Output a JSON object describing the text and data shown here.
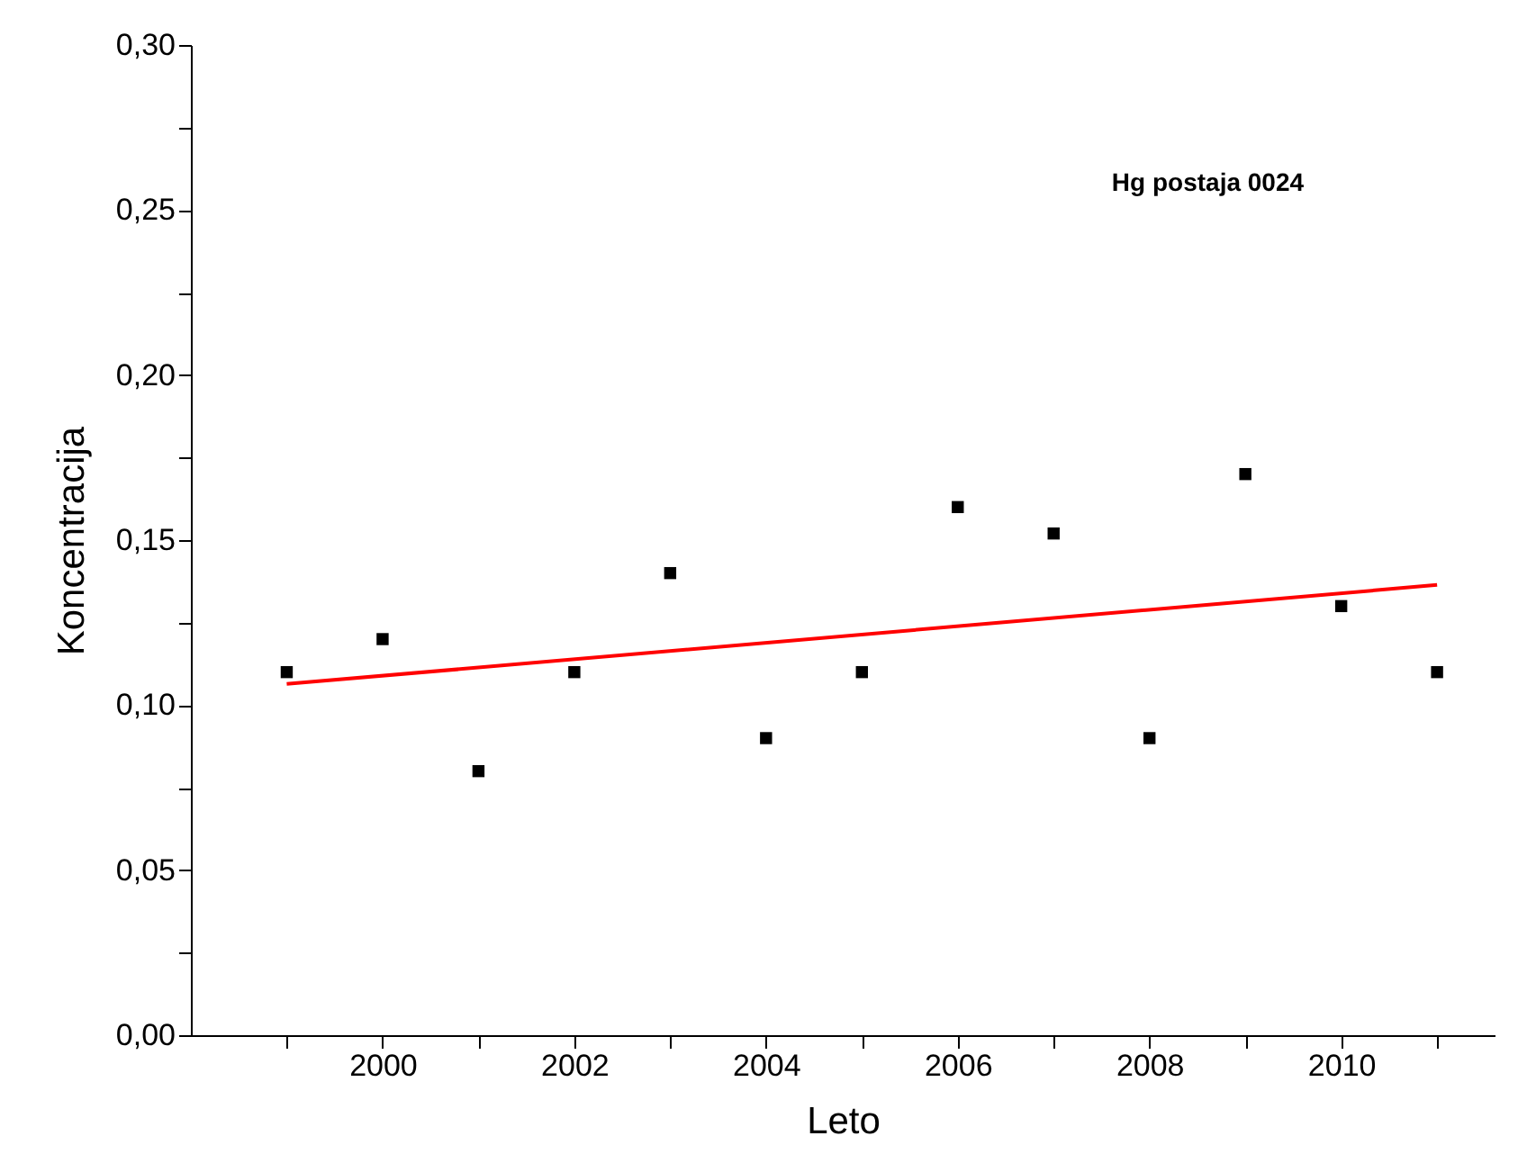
{
  "chart_data": {
    "type": "scatter",
    "xlabel": "Leto",
    "ylabel": "Koncentracija",
    "annotations": [
      "Hg postaja 0024"
    ],
    "x": [
      1999,
      2000,
      2001,
      2002,
      2003,
      2004,
      2005,
      2006,
      2007,
      2008,
      2009,
      2010,
      2011
    ],
    "series": [
      {
        "type": "scatter",
        "color": "#000000",
        "marker": "square",
        "values": [
          0.11,
          0.12,
          0.08,
          0.11,
          0.14,
          0.09,
          0.11,
          0.16,
          0.152,
          0.09,
          0.17,
          0.13,
          0.11
        ]
      },
      {
        "type": "line",
        "color": "#ff0000",
        "line_style": "solid",
        "marker": "none",
        "x": [
          1999,
          2011
        ],
        "values": [
          0.1064,
          0.1364
        ]
      }
    ],
    "xlim": [
      1998,
      2011.6
    ],
    "ylim": [
      0,
      0.3
    ],
    "xticks": [
      {
        "value": 1999,
        "label": null
      },
      2000,
      {
        "value": 2001,
        "label": null
      },
      2002,
      {
        "value": 2003,
        "label": null
      },
      2004,
      {
        "value": 2005,
        "label": null
      },
      2006,
      {
        "value": 2007,
        "label": null
      },
      2008,
      {
        "value": 2009,
        "label": null
      },
      2010,
      {
        "value": 2011,
        "label": null
      }
    ],
    "yticks": [
      {
        "value": 0,
        "label": "0,00"
      },
      {
        "value": 0.025,
        "label": null
      },
      {
        "value": 0.05,
        "label": "0,05"
      },
      {
        "value": 0.075,
        "label": null
      },
      {
        "value": 0.1,
        "label": "0,10"
      },
      {
        "value": 0.125,
        "label": null
      },
      {
        "value": 0.15,
        "label": "0,15"
      },
      {
        "value": 0.175,
        "label": null
      },
      {
        "value": 0.2,
        "label": "0,20"
      },
      {
        "value": 0.225,
        "label": null
      },
      {
        "value": 0.25,
        "label": "0,25"
      },
      {
        "value": 0.275,
        "label": null
      },
      {
        "value": 0.3,
        "label": "0,30"
      }
    ],
    "grid": false,
    "legend": false
  }
}
